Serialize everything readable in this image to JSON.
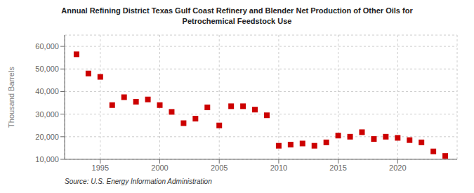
{
  "chart_data": {
    "type": "scatter",
    "title": "Annual Refining District Texas Gulf Coast Refinery and Blender Net Production of Other Oils for\nPetrochemical Feedstock Use",
    "y_label": "Thousand Barrels",
    "annotations": [
      "Source: U.S. Energy Information Administration"
    ],
    "x": [
      1993,
      1994,
      1995,
      1996,
      1997,
      1998,
      1999,
      2000,
      2001,
      2002,
      2003,
      2004,
      2005,
      2006,
      2007,
      2008,
      2009,
      2010,
      2011,
      2012,
      2013,
      2014,
      2015,
      2016,
      2017,
      2018,
      2019,
      2020,
      2021,
      2022,
      2023,
      2024
    ],
    "values": [
      56500,
      48000,
      46500,
      34000,
      37500,
      35500,
      36500,
      34000,
      31000,
      26000,
      28000,
      33000,
      25000,
      33500,
      33500,
      32000,
      29500,
      16000,
      16500,
      17000,
      16000,
      17500,
      20500,
      20000,
      22000,
      19000,
      20000,
      19500,
      18500,
      17500,
      13500,
      11500
    ],
    "color": "#cc0000",
    "marker": "square",
    "xlim": [
      1992,
      2025
    ],
    "ylim": [
      10000,
      65000
    ],
    "xticks": [
      1995,
      2000,
      2005,
      2010,
      2015,
      2020
    ],
    "yticks": [
      {
        "value": 10000,
        "label": "10,000"
      },
      {
        "value": 20000,
        "label": "20,000"
      },
      {
        "value": 30000,
        "label": "30,000"
      },
      {
        "value": 40000,
        "label": "40,000"
      },
      {
        "value": 50000,
        "label": "50,000"
      },
      {
        "value": 60000,
        "label": "60,000"
      }
    ],
    "grid": true
  }
}
